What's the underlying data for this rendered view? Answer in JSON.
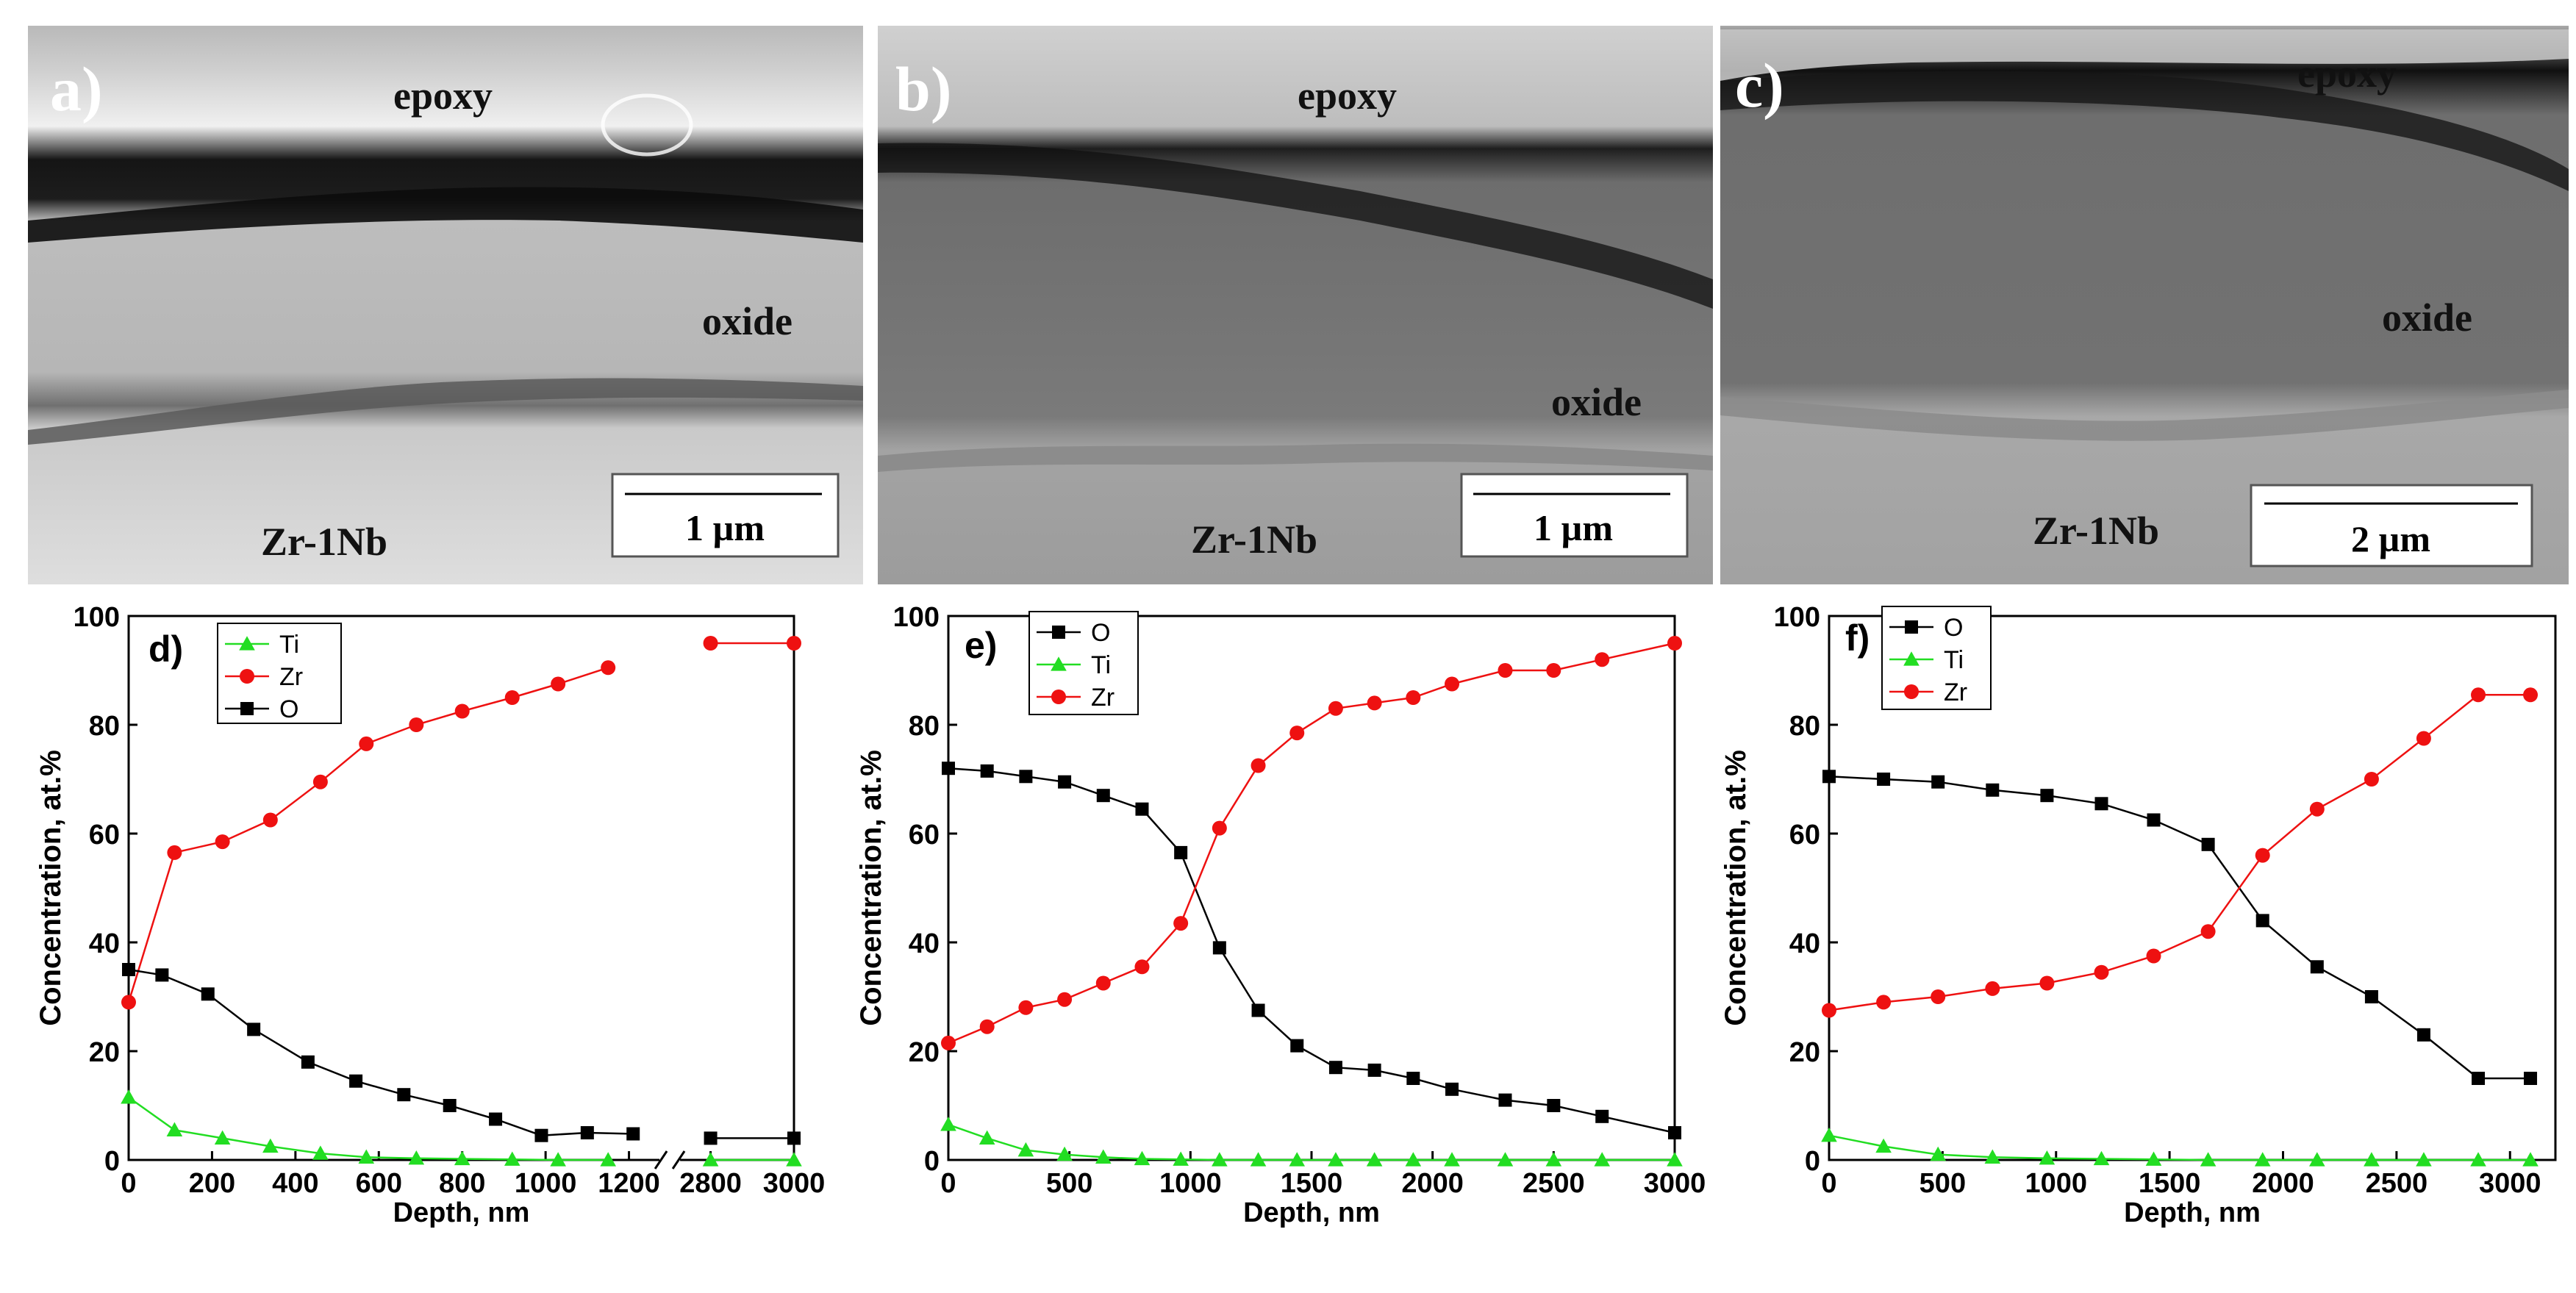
{
  "sem_panels": [
    {
      "letter": "a)",
      "epoxy": "epoxy",
      "oxide": "oxide",
      "substrate": "Zr-1Nb",
      "scale": "1 µm"
    },
    {
      "letter": "b)",
      "epoxy": "epoxy",
      "oxide": "oxide",
      "substrate": "Zr-1Nb",
      "scale": "1 µm"
    },
    {
      "letter": "c)",
      "epoxy": "epoxy",
      "oxide": "oxide",
      "substrate": "Zr-1Nb",
      "scale": "2 µm"
    }
  ],
  "colors": {
    "O": "#000000",
    "Ti": "#22dd22",
    "Zr": "#ee1111"
  },
  "chart_data": [
    {
      "type": "line",
      "panel": "d)",
      "xlabel": "Depth, nm",
      "ylabel": "Concentration, at.%",
      "ylim": [
        0,
        100
      ],
      "yticks": [
        0,
        20,
        40,
        60,
        80,
        100
      ],
      "xlim": [
        0,
        3000
      ],
      "axis_break": {
        "from": 1250,
        "to": 2750
      },
      "xticks": [
        0,
        200,
        400,
        600,
        800,
        1000,
        1200,
        2800,
        3000
      ],
      "xtick_labels": [
        "0",
        "200",
        "400",
        "600",
        "800",
        "1000",
        "1200",
        "2800",
        "3000"
      ],
      "legend": [
        "Ti",
        "Zr",
        "O"
      ],
      "series": [
        {
          "name": "Ti",
          "marker": "triangle",
          "x": [
            0,
            110,
            225,
            340,
            460,
            570,
            690,
            800,
            920,
            1030,
            1150,
            2800,
            3000
          ],
          "values": [
            11.5,
            5.5,
            4.0,
            2.5,
            1.2,
            0.5,
            0.3,
            0.2,
            0.1,
            0.0,
            0.0,
            0.0,
            0.0
          ]
        },
        {
          "name": "Zr",
          "marker": "circle",
          "x": [
            0,
            110,
            225,
            340,
            460,
            570,
            690,
            800,
            920,
            1030,
            1150,
            2800,
            3000
          ],
          "values": [
            29.0,
            56.5,
            58.5,
            62.5,
            69.5,
            76.5,
            80.0,
            82.5,
            85.0,
            87.5,
            90.5,
            95.0,
            95.0
          ]
        },
        {
          "name": "O",
          "marker": "square",
          "x": [
            0,
            80,
            190,
            300,
            430,
            545,
            660,
            770,
            880,
            990,
            1100,
            1210,
            2800,
            3000
          ],
          "values": [
            35.0,
            34.0,
            30.5,
            24.0,
            18.0,
            14.5,
            12.0,
            10.0,
            7.5,
            4.5,
            5.0,
            4.8,
            4.0,
            4.0
          ]
        }
      ]
    },
    {
      "type": "line",
      "panel": "e)",
      "xlabel": "Depth, nm",
      "ylabel": "Concentration, at.%",
      "ylim": [
        0,
        100
      ],
      "yticks": [
        0,
        20,
        40,
        60,
        80,
        100
      ],
      "xlim": [
        0,
        3000
      ],
      "xticks": [
        0,
        500,
        1000,
        1500,
        2000,
        2500,
        3000
      ],
      "xtick_labels": [
        "0",
        "500",
        "1000",
        "1500",
        "2000",
        "2500",
        "3000"
      ],
      "legend": [
        "O",
        "Ti",
        "Zr"
      ],
      "series": [
        {
          "name": "O",
          "marker": "square",
          "x": [
            0,
            160,
            320,
            480,
            640,
            800,
            960,
            1120,
            1280,
            1440,
            1600,
            1760,
            1920,
            2080,
            2300,
            2500,
            2700,
            3000
          ],
          "values": [
            72.0,
            71.5,
            70.5,
            69.5,
            67.0,
            64.5,
            56.5,
            39.0,
            27.5,
            21.0,
            17.0,
            16.5,
            15.0,
            13.0,
            11.0,
            10.0,
            8.0,
            5.0
          ]
        },
        {
          "name": "Ti",
          "marker": "triangle",
          "x": [
            0,
            160,
            320,
            480,
            640,
            800,
            960,
            1120,
            1280,
            1440,
            1600,
            1760,
            1920,
            2080,
            2300,
            2500,
            2700,
            3000
          ],
          "values": [
            6.5,
            4.0,
            1.8,
            1.0,
            0.5,
            0.2,
            0.1,
            0.0,
            0.0,
            0.0,
            0.0,
            0.0,
            0.0,
            0.0,
            0.0,
            0.0,
            0.0,
            0.0
          ]
        },
        {
          "name": "Zr",
          "marker": "circle",
          "x": [
            0,
            160,
            320,
            480,
            640,
            800,
            960,
            1120,
            1280,
            1440,
            1600,
            1760,
            1920,
            2080,
            2300,
            2500,
            2700,
            3000
          ],
          "values": [
            21.5,
            24.5,
            28.0,
            29.5,
            32.5,
            35.5,
            43.5,
            61.0,
            72.5,
            78.5,
            83.0,
            84.0,
            85.0,
            87.5,
            90.0,
            90.0,
            92.0,
            95.0
          ]
        }
      ]
    },
    {
      "type": "line",
      "panel": "f)",
      "xlabel": "Depth, nm",
      "ylabel": "Concentration, at.%",
      "ylim": [
        0,
        100
      ],
      "yticks": [
        0,
        20,
        40,
        60,
        80,
        100
      ],
      "xlim": [
        0,
        3200
      ],
      "xticks": [
        0,
        500,
        1000,
        1500,
        2000,
        2500,
        3000
      ],
      "xtick_labels": [
        "0",
        "500",
        "1000",
        "1500",
        "2000",
        "2500",
        "3000"
      ],
      "legend": [
        "O",
        "Ti",
        "Zr"
      ],
      "series": [
        {
          "name": "O",
          "marker": "square",
          "x": [
            0,
            240,
            480,
            720,
            960,
            1200,
            1430,
            1670,
            1910,
            2150,
            2390,
            2620,
            2860,
            3090
          ],
          "values": [
            70.5,
            70.0,
            69.5,
            68.0,
            67.0,
            65.5,
            62.5,
            58.0,
            44.0,
            35.5,
            30.0,
            23.0,
            15.0,
            15.0
          ]
        },
        {
          "name": "Ti",
          "marker": "triangle",
          "x": [
            0,
            240,
            480,
            720,
            960,
            1200,
            1430,
            1670,
            1910,
            2150,
            2390,
            2620,
            2860,
            3090
          ],
          "values": [
            4.5,
            2.5,
            1.0,
            0.5,
            0.3,
            0.2,
            0.1,
            0.0,
            0.0,
            0.0,
            0.0,
            0.0,
            0.0,
            0.0
          ]
        },
        {
          "name": "Zr",
          "marker": "circle",
          "x": [
            0,
            240,
            480,
            720,
            960,
            1200,
            1430,
            1670,
            1910,
            2150,
            2390,
            2620,
            2860,
            3090
          ],
          "values": [
            27.5,
            29.0,
            30.0,
            31.5,
            32.5,
            34.5,
            37.5,
            42.0,
            56.0,
            64.5,
            70.0,
            77.5,
            85.5,
            85.5
          ]
        }
      ]
    }
  ]
}
